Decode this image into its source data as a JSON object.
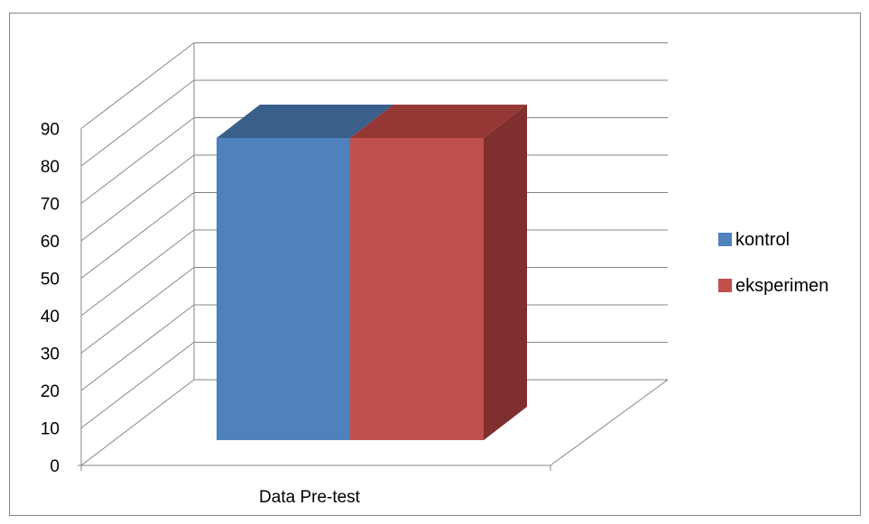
{
  "chart_data": {
    "type": "bar",
    "categories": [
      "Data Pre-test"
    ],
    "series": [
      {
        "name": "kontrol",
        "values": [
          84
        ],
        "color": "#4F81BD",
        "side_color": "#3B6190",
        "top_color": "#3A5F8B"
      },
      {
        "name": "eksperimen",
        "values": [
          84
        ],
        "color": "#C0504D",
        "side_color": "#7F2F2D",
        "top_color": "#953735"
      }
    ],
    "y_ticks": [
      "0",
      "10",
      "20",
      "30",
      "40",
      "50",
      "60",
      "70",
      "80",
      "90"
    ],
    "ylim": [
      0,
      90
    ],
    "grid": true,
    "legend_position": "right",
    "chart_style": "3d-clustered-column"
  }
}
